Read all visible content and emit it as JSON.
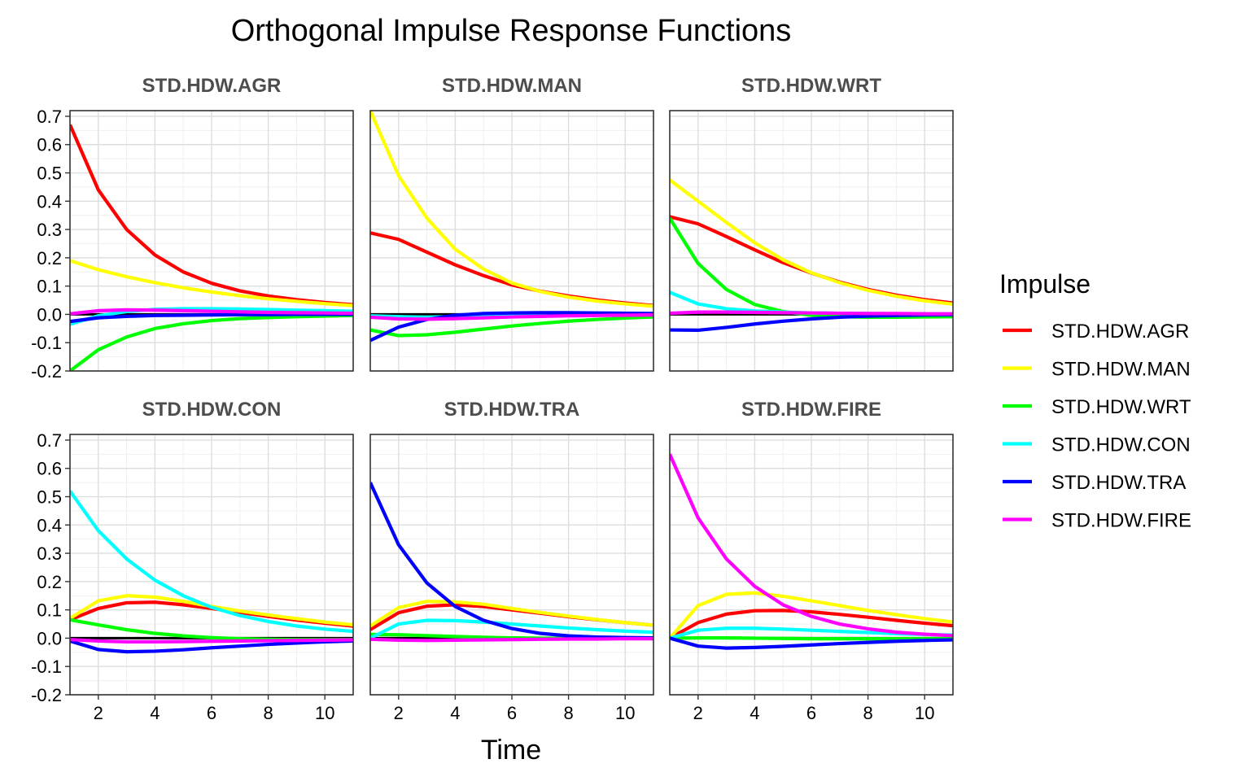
{
  "chart_data": {
    "type": "line",
    "title": "Orthogonal Impulse Response Functions",
    "xlabel": "Time",
    "ylabel": "",
    "xlim": [
      1,
      11
    ],
    "ylim": [
      -0.2,
      0.72
    ],
    "x_ticks": [
      2,
      4,
      6,
      8,
      10
    ],
    "y_ticks": [
      -0.2,
      -0.1,
      0.0,
      0.1,
      0.2,
      0.3,
      0.4,
      0.5,
      0.6,
      0.7
    ],
    "y_tick_labels": [
      "-0.2",
      "-0.1",
      "0.0",
      "0.1",
      "0.2",
      "0.3",
      "0.4",
      "0.5",
      "0.6",
      "0.7"
    ],
    "grid": true,
    "legend": {
      "title": "Impulse",
      "placement": "right",
      "entries": [
        {
          "name": "STD.HDW.AGR",
          "color": "#ff0000"
        },
        {
          "name": "STD.HDW.MAN",
          "color": "#ffff00"
        },
        {
          "name": "STD.HDW.WRT",
          "color": "#00ff00"
        },
        {
          "name": "STD.HDW.CON",
          "color": "#00ffff"
        },
        {
          "name": "STD.HDW.TRA",
          "color": "#0000ff"
        },
        {
          "name": "STD.HDW.FIRE",
          "color": "#ff00ff"
        }
      ]
    },
    "x": [
      1,
      2,
      3,
      4,
      5,
      6,
      7,
      8,
      9,
      10,
      11
    ],
    "panels": [
      {
        "label": "STD.HDW.AGR",
        "series": [
          {
            "name": "STD.HDW.AGR",
            "color": "#ff0000",
            "values": [
              0.67,
              0.44,
              0.3,
              0.21,
              0.15,
              0.11,
              0.083,
              0.065,
              0.052,
              0.042,
              0.034
            ]
          },
          {
            "name": "STD.HDW.MAN",
            "color": "#ffff00",
            "values": [
              0.19,
              0.158,
              0.133,
              0.112,
              0.094,
              0.079,
              0.066,
              0.055,
              0.046,
              0.038,
              0.031
            ]
          },
          {
            "name": "STD.HDW.WRT",
            "color": "#00ff00",
            "values": [
              -0.2,
              -0.125,
              -0.08,
              -0.05,
              -0.033,
              -0.022,
              -0.015,
              -0.011,
              -0.008,
              -0.006,
              -0.004
            ]
          },
          {
            "name": "STD.HDW.CON",
            "color": "#00ffff",
            "values": [
              -0.035,
              -0.005,
              0.01,
              0.018,
              0.02,
              0.02,
              0.019,
              0.017,
              0.015,
              0.013,
              0.011
            ]
          },
          {
            "name": "STD.HDW.TRA",
            "color": "#0000ff",
            "values": [
              -0.025,
              -0.012,
              -0.007,
              -0.004,
              -0.003,
              -0.002,
              -0.001,
              -0.001,
              0.0,
              0.0,
              0.0
            ]
          },
          {
            "name": "STD.HDW.FIRE",
            "color": "#ff00ff",
            "values": [
              0.002,
              0.013,
              0.016,
              0.015,
              0.013,
              0.011,
              0.009,
              0.007,
              0.006,
              0.005,
              0.004
            ]
          }
        ]
      },
      {
        "label": "STD.HDW.MAN",
        "series": [
          {
            "name": "STD.HDW.AGR",
            "color": "#ff0000",
            "values": [
              0.288,
              0.265,
              0.22,
              0.175,
              0.137,
              0.104,
              0.082,
              0.065,
              0.051,
              0.04,
              0.031
            ]
          },
          {
            "name": "STD.HDW.MAN",
            "color": "#ffff00",
            "values": [
              0.72,
              0.49,
              0.34,
              0.23,
              0.16,
              0.111,
              0.081,
              0.061,
              0.047,
              0.037,
              0.029
            ]
          },
          {
            "name": "STD.HDW.WRT",
            "color": "#00ff00",
            "values": [
              -0.055,
              -0.075,
              -0.072,
              -0.063,
              -0.052,
              -0.041,
              -0.032,
              -0.024,
              -0.018,
              -0.013,
              -0.009
            ]
          },
          {
            "name": "STD.HDW.CON",
            "color": "#00ffff",
            "values": [
              -0.005,
              -0.008,
              -0.01,
              -0.008,
              -0.006,
              -0.004,
              -0.003,
              -0.002,
              -0.001,
              -0.001,
              0.0
            ]
          },
          {
            "name": "STD.HDW.TRA",
            "color": "#0000ff",
            "values": [
              -0.092,
              -0.045,
              -0.018,
              -0.003,
              0.003,
              0.005,
              0.006,
              0.006,
              0.005,
              0.004,
              0.003
            ]
          },
          {
            "name": "STD.HDW.FIRE",
            "color": "#ff00ff",
            "values": [
              -0.01,
              -0.016,
              -0.017,
              -0.015,
              -0.012,
              -0.009,
              -0.007,
              -0.005,
              -0.004,
              -0.003,
              -0.002
            ]
          }
        ]
      },
      {
        "label": "STD.HDW.WRT",
        "series": [
          {
            "name": "STD.HDW.AGR",
            "color": "#ff0000",
            "values": [
              0.345,
              0.32,
              0.275,
              0.228,
              0.183,
              0.146,
              0.114,
              0.088,
              0.068,
              0.052,
              0.04
            ]
          },
          {
            "name": "STD.HDW.MAN",
            "color": "#ffff00",
            "values": [
              0.475,
              0.4,
              0.325,
              0.253,
              0.193,
              0.147,
              0.112,
              0.085,
              0.064,
              0.048,
              0.036
            ]
          },
          {
            "name": "STD.HDW.WRT",
            "color": "#00ff00",
            "values": [
              0.34,
              0.18,
              0.088,
              0.035,
              0.01,
              -0.003,
              -0.008,
              -0.01,
              -0.01,
              -0.009,
              -0.008
            ]
          },
          {
            "name": "STD.HDW.CON",
            "color": "#00ffff",
            "values": [
              0.078,
              0.037,
              0.02,
              0.012,
              0.008,
              0.005,
              0.004,
              0.003,
              0.002,
              0.002,
              0.001
            ]
          },
          {
            "name": "STD.HDW.TRA",
            "color": "#0000ff",
            "values": [
              -0.055,
              -0.056,
              -0.046,
              -0.034,
              -0.024,
              -0.016,
              -0.01,
              -0.006,
              -0.004,
              -0.002,
              -0.001
            ]
          },
          {
            "name": "STD.HDW.FIRE",
            "color": "#ff00ff",
            "values": [
              0.004,
              0.008,
              0.008,
              0.007,
              0.006,
              0.005,
              0.004,
              0.003,
              0.003,
              0.002,
              0.002
            ]
          }
        ]
      },
      {
        "label": "STD.HDW.CON",
        "series": [
          {
            "name": "STD.HDW.AGR",
            "color": "#ff0000",
            "values": [
              0.065,
              0.105,
              0.125,
              0.127,
              0.118,
              0.105,
              0.091,
              0.077,
              0.064,
              0.053,
              0.043
            ]
          },
          {
            "name": "STD.HDW.MAN",
            "color": "#ffff00",
            "values": [
              0.07,
              0.132,
              0.15,
              0.145,
              0.13,
              0.112,
              0.096,
              0.082,
              0.069,
              0.057,
              0.047
            ]
          },
          {
            "name": "STD.HDW.WRT",
            "color": "#00ff00",
            "values": [
              0.065,
              0.047,
              0.03,
              0.017,
              0.008,
              0.002,
              -0.002,
              -0.004,
              -0.005,
              -0.005,
              -0.005
            ]
          },
          {
            "name": "STD.HDW.CON",
            "color": "#00ffff",
            "values": [
              0.52,
              0.38,
              0.28,
              0.205,
              0.15,
              0.109,
              0.08,
              0.059,
              0.043,
              0.032,
              0.024
            ]
          },
          {
            "name": "STD.HDW.TRA",
            "color": "#0000ff",
            "values": [
              -0.01,
              -0.04,
              -0.048,
              -0.046,
              -0.041,
              -0.034,
              -0.028,
              -0.022,
              -0.017,
              -0.013,
              -0.01
            ]
          },
          {
            "name": "STD.HDW.FIRE",
            "color": "#ff00ff",
            "values": [
              -0.005,
              -0.01,
              -0.013,
              -0.013,
              -0.012,
              -0.011,
              -0.01,
              -0.009,
              -0.008,
              -0.007,
              -0.006
            ]
          }
        ]
      },
      {
        "label": "STD.HDW.TRA",
        "series": [
          {
            "name": "STD.HDW.AGR",
            "color": "#ff0000",
            "values": [
              0.03,
              0.09,
              0.113,
              0.118,
              0.112,
              0.1,
              0.088,
              0.076,
              0.065,
              0.055,
              0.046
            ]
          },
          {
            "name": "STD.HDW.MAN",
            "color": "#ffff00",
            "values": [
              0.043,
              0.108,
              0.13,
              0.128,
              0.12,
              0.105,
              0.091,
              0.078,
              0.066,
              0.055,
              0.046
            ]
          },
          {
            "name": "STD.HDW.WRT",
            "color": "#00ff00",
            "values": [
              0.013,
              0.012,
              0.009,
              0.006,
              0.003,
              0.001,
              0.0,
              -0.001,
              -0.001,
              -0.001,
              -0.001
            ]
          },
          {
            "name": "STD.HDW.CON",
            "color": "#00ffff",
            "values": [
              0.0,
              0.05,
              0.063,
              0.062,
              0.057,
              0.05,
              0.043,
              0.036,
              0.03,
              0.025,
              0.021
            ]
          },
          {
            "name": "STD.HDW.TRA",
            "color": "#0000ff",
            "values": [
              0.55,
              0.33,
              0.195,
              0.112,
              0.063,
              0.034,
              0.017,
              0.008,
              0.004,
              0.002,
              0.001
            ]
          },
          {
            "name": "STD.HDW.FIRE",
            "color": "#ff00ff",
            "values": [
              -0.004,
              -0.007,
              -0.008,
              -0.007,
              -0.006,
              -0.005,
              -0.004,
              -0.003,
              -0.003,
              -0.002,
              -0.002
            ]
          }
        ]
      },
      {
        "label": "STD.HDW.FIRE",
        "series": [
          {
            "name": "STD.HDW.AGR",
            "color": "#ff0000",
            "values": [
              0.0,
              0.055,
              0.085,
              0.097,
              0.098,
              0.093,
              0.084,
              0.074,
              0.063,
              0.053,
              0.044
            ]
          },
          {
            "name": "STD.HDW.MAN",
            "color": "#ffff00",
            "values": [
              0.0,
              0.115,
              0.155,
              0.16,
              0.148,
              0.132,
              0.115,
              0.098,
              0.083,
              0.069,
              0.057
            ]
          },
          {
            "name": "STD.HDW.WRT",
            "color": "#00ff00",
            "values": [
              0.0,
              0.001,
              0.001,
              0.0,
              -0.001,
              -0.002,
              -0.002,
              -0.002,
              -0.002,
              -0.002,
              -0.002
            ]
          },
          {
            "name": "STD.HDW.CON",
            "color": "#00ffff",
            "values": [
              0.0,
              0.028,
              0.035,
              0.035,
              0.032,
              0.028,
              0.024,
              0.02,
              0.016,
              0.013,
              0.011
            ]
          },
          {
            "name": "STD.HDW.TRA",
            "color": "#0000ff",
            "values": [
              0.0,
              -0.028,
              -0.035,
              -0.033,
              -0.029,
              -0.024,
              -0.019,
              -0.015,
              -0.011,
              -0.008,
              -0.006
            ]
          },
          {
            "name": "STD.HDW.FIRE",
            "color": "#ff00ff",
            "values": [
              0.65,
              0.425,
              0.28,
              0.183,
              0.118,
              0.077,
              0.05,
              0.033,
              0.021,
              0.014,
              0.009
            ]
          }
        ]
      }
    ]
  }
}
